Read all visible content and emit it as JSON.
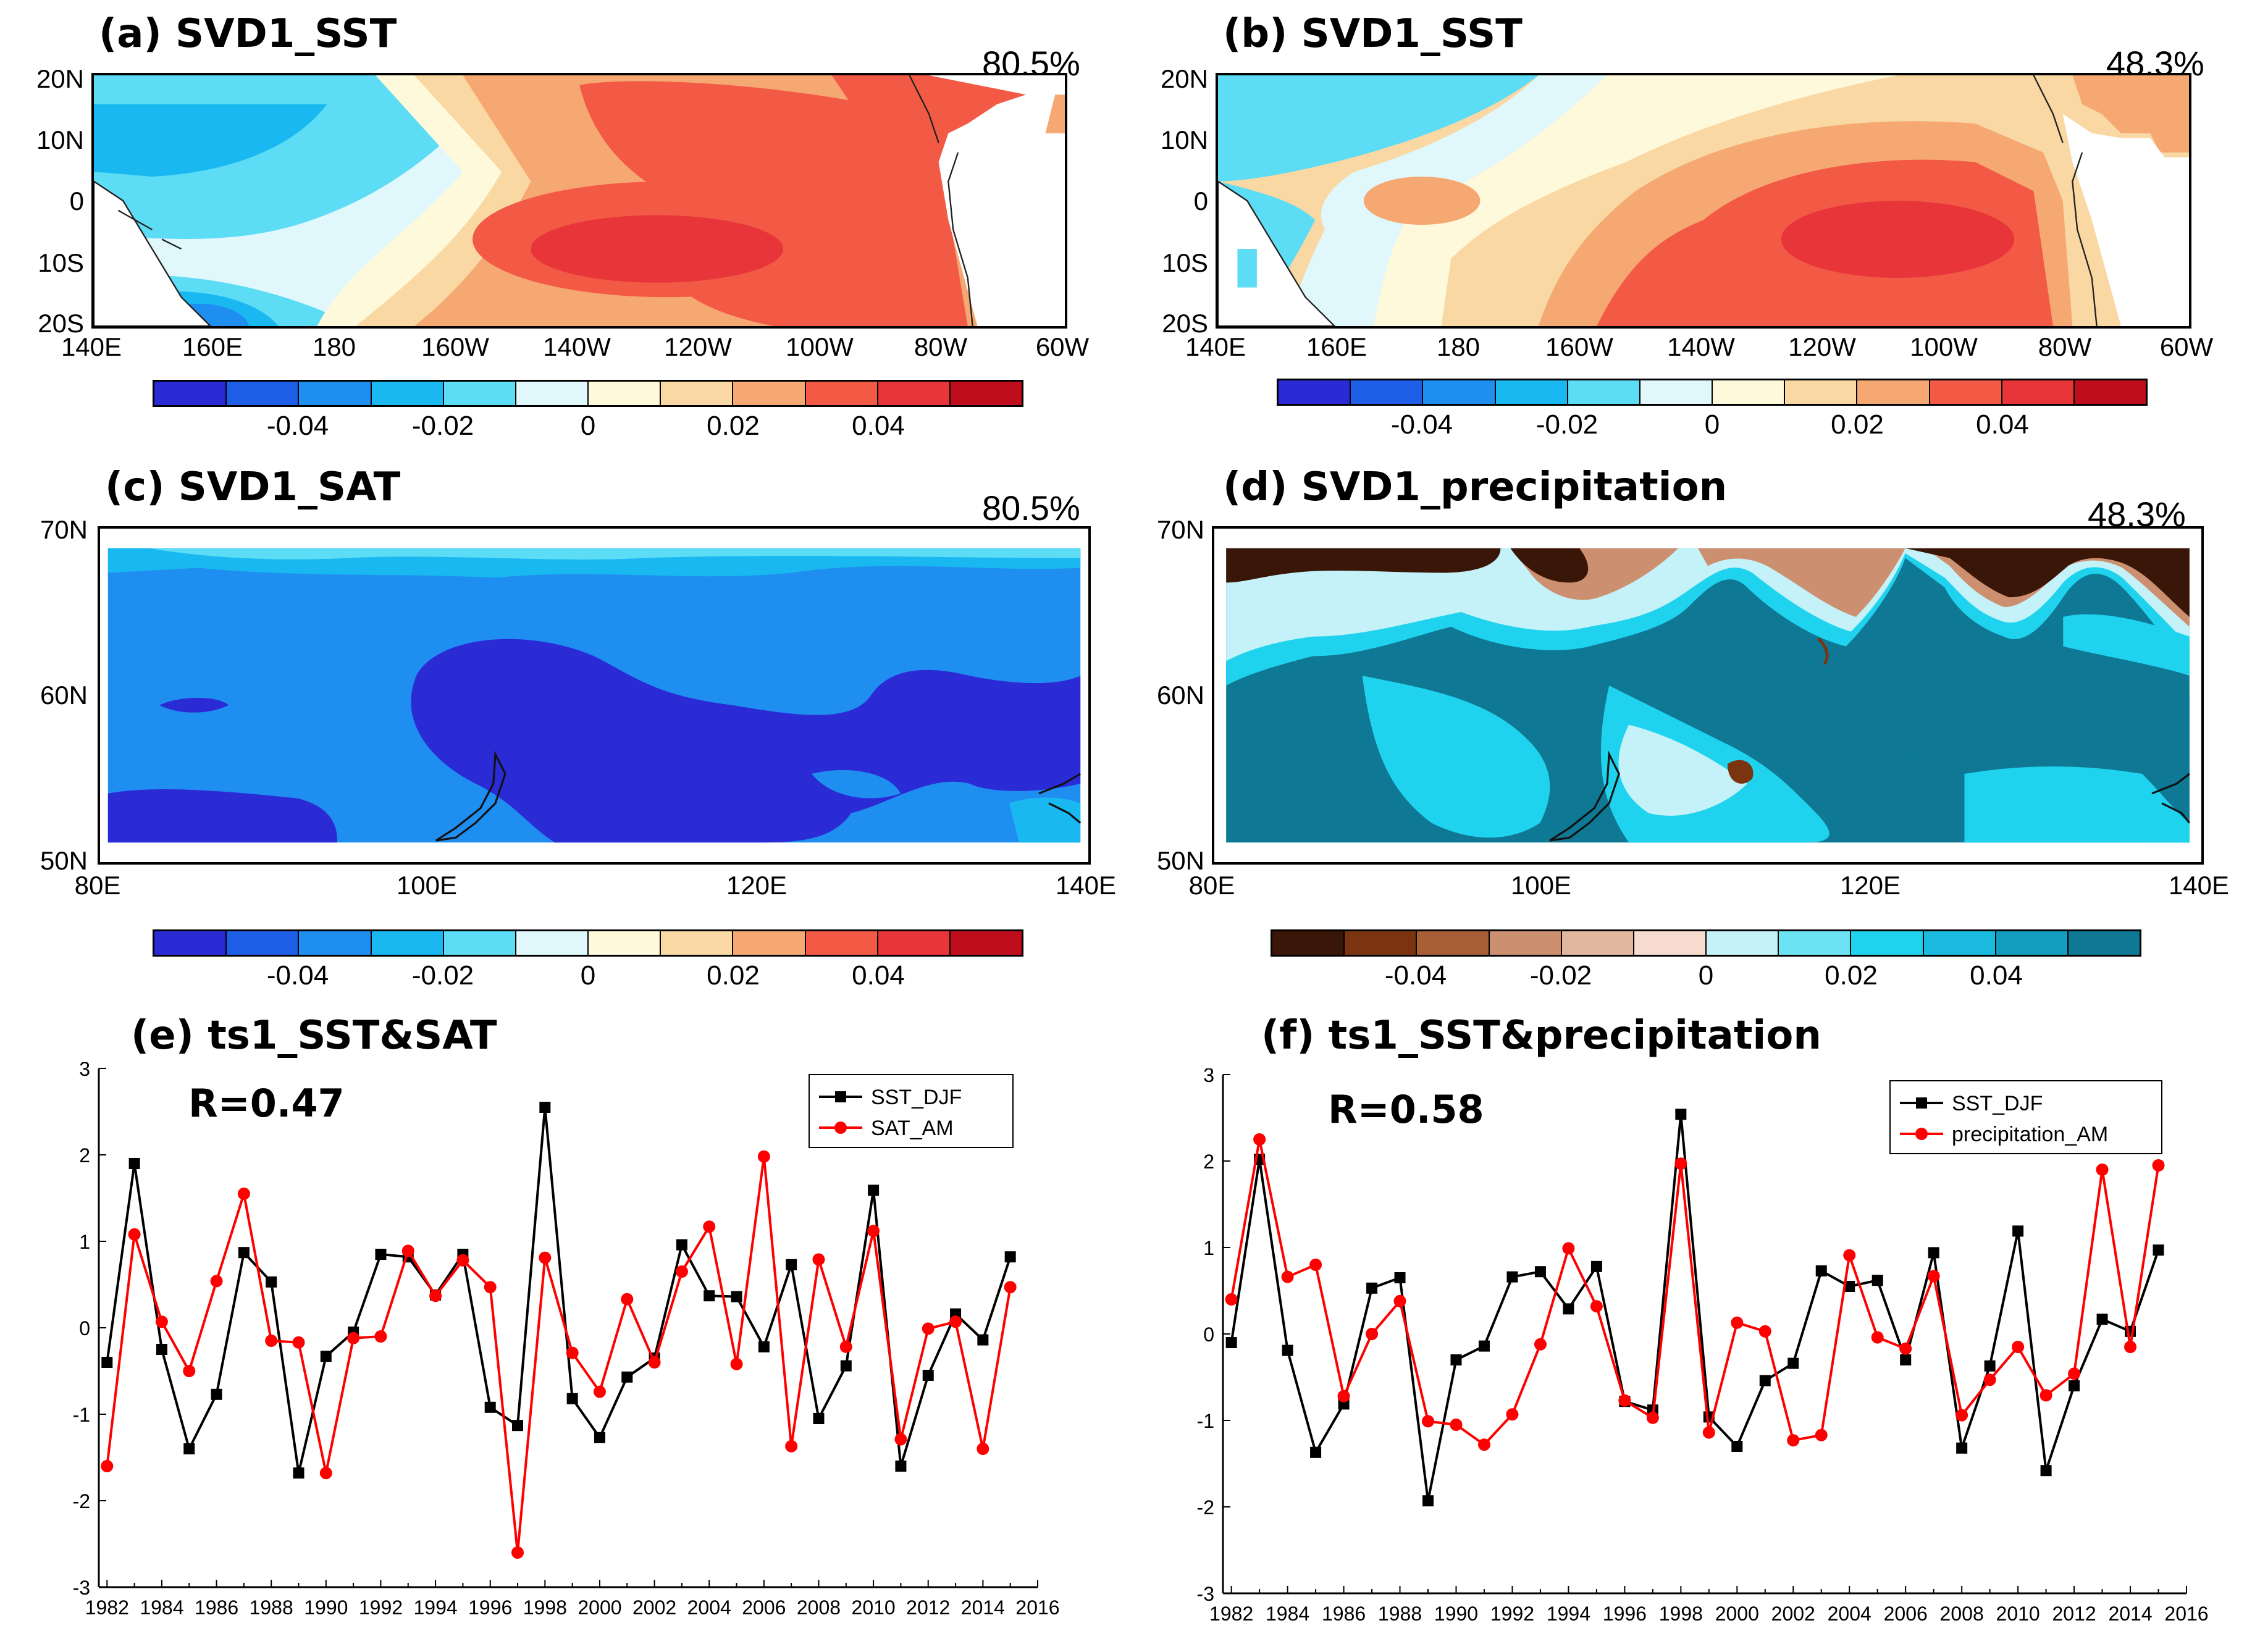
{
  "panels": {
    "a": {
      "title": "(a) SVD1_SST",
      "pct": "80.5%"
    },
    "b": {
      "title": "(b) SVD1_SST",
      "pct": "48.3%"
    },
    "c": {
      "title": "(c) SVD1_SAT",
      "pct": "80.5%"
    },
    "d": {
      "title": "(d) SVD1_precipitation",
      "pct": "48.3%"
    },
    "e": {
      "title": "(e) ts1_SST&SAT",
      "r": "R=0.47"
    },
    "f": {
      "title": "(f) ts1_SST&precipitation",
      "r": "R=0.58"
    }
  },
  "sst_axes": {
    "lat": [
      "20N",
      "10N",
      "0",
      "10S",
      "20S"
    ],
    "lon": [
      "140E",
      "160E",
      "180",
      "160W",
      "140W",
      "120W",
      "100W",
      "80W",
      "60W"
    ]
  },
  "land_axes": {
    "lat": [
      "70N",
      "60N",
      "50N"
    ],
    "lon": [
      "80E",
      "100E",
      "120E",
      "140E"
    ]
  },
  "colorbar_warm": {
    "colors": [
      "#2b2bd6",
      "#1f5fe8",
      "#1e8ef0",
      "#19b8f0",
      "#5cdcf5",
      "#e0f7fb",
      "#fff9dc",
      "#fad8a4",
      "#f6a872",
      "#f25a45",
      "#e8353a",
      "#c00d1e"
    ],
    "labels": [
      "-0.04",
      "-0.02",
      "0",
      "0.02",
      "0.04"
    ]
  },
  "colorbar_brown": {
    "colors": [
      "#3a1608",
      "#7a3410",
      "#a95f35",
      "#cc9070",
      "#e1b79e",
      "#f8dccf",
      "#c4f2f8",
      "#6ce3f3",
      "#1fd3ee",
      "#1bbbe0",
      "#139ec0",
      "#0e7895"
    ],
    "labels": [
      "-0.04",
      "-0.02",
      "0",
      "0.02",
      "0.04"
    ]
  },
  "chart_data": [
    {
      "type": "line",
      "title": "(e) ts1_SST&SAT",
      "annotation": "R=0.47",
      "x": [
        1982,
        1983,
        1984,
        1985,
        1986,
        1987,
        1988,
        1989,
        1990,
        1991,
        1992,
        1993,
        1994,
        1995,
        1996,
        1997,
        1998,
        1999,
        2000,
        2001,
        2002,
        2003,
        2004,
        2005,
        2006,
        2007,
        2008,
        2009,
        2010,
        2011,
        2012,
        2013,
        2014,
        2015
      ],
      "ylim": [
        -3,
        3
      ],
      "yticks": [
        "-3",
        "-2",
        "-1",
        "0",
        "1",
        "2",
        "3"
      ],
      "xticks": [
        "1982",
        "1984",
        "1986",
        "1988",
        "1990",
        "1992",
        "1994",
        "1996",
        "1998",
        "2000",
        "2002",
        "2004",
        "2006",
        "2008",
        "2010",
        "2012",
        "2014",
        "2016"
      ],
      "xlim": [
        1981.7,
        2016
      ],
      "legend_position": "top-right",
      "series": [
        {
          "name": "SST_DJF",
          "color": "#000000",
          "marker": "square",
          "values": [
            -0.4,
            1.9,
            -0.25,
            -1.4,
            -0.77,
            0.87,
            0.53,
            -1.68,
            -0.33,
            -0.05,
            0.85,
            0.82,
            0.38,
            0.85,
            -0.92,
            -1.13,
            2.55,
            -0.82,
            -1.27,
            -0.57,
            -0.35,
            0.96,
            0.37,
            0.36,
            -0.22,
            0.73,
            -1.05,
            -0.44,
            1.59,
            -1.6,
            -0.55,
            0.16,
            -0.14,
            0.82
          ]
        },
        {
          "name": "SAT_AM",
          "color": "#ff0000",
          "marker": "circle",
          "values": [
            -1.6,
            1.08,
            0.07,
            -0.5,
            0.54,
            1.55,
            -0.15,
            -0.17,
            -1.68,
            -0.12,
            -0.1,
            0.89,
            0.37,
            0.78,
            0.47,
            -2.6,
            0.81,
            -0.29,
            -0.74,
            0.33,
            -0.4,
            0.65,
            1.17,
            -0.42,
            1.98,
            -1.37,
            0.79,
            -0.22,
            1.12,
            -1.29,
            -0.01,
            0.07,
            -1.4,
            0.47
          ]
        }
      ]
    },
    {
      "type": "line",
      "title": "(f) ts1_SST&precipitation",
      "annotation": "R=0.58",
      "x": [
        1982,
        1983,
        1984,
        1985,
        1986,
        1987,
        1988,
        1989,
        1990,
        1991,
        1992,
        1993,
        1994,
        1995,
        1996,
        1997,
        1998,
        1999,
        2000,
        2001,
        2002,
        2003,
        2004,
        2005,
        2006,
        2007,
        2008,
        2009,
        2010,
        2011,
        2012,
        2013,
        2014,
        2015
      ],
      "ylim": [
        -3,
        3
      ],
      "yticks": [
        "-3",
        "-2",
        "-1",
        "0",
        "1",
        "2",
        "3"
      ],
      "xticks": [
        "1982",
        "1984",
        "1986",
        "1988",
        "1990",
        "1992",
        "1994",
        "1996",
        "1998",
        "2000",
        "2002",
        "2004",
        "2006",
        "2008",
        "2010",
        "2012",
        "2014",
        "2016"
      ],
      "xlim": [
        1981.7,
        2016
      ],
      "legend_position": "top-right",
      "series": [
        {
          "name": "SST_DJF",
          "color": "#000000",
          "marker": "square",
          "values": [
            -0.1,
            2.02,
            -0.19,
            -1.37,
            -0.81,
            0.53,
            0.65,
            -1.93,
            -0.3,
            -0.14,
            0.66,
            0.72,
            0.29,
            0.78,
            -0.78,
            -0.88,
            2.54,
            -0.96,
            -1.3,
            -0.54,
            -0.34,
            0.73,
            0.55,
            0.62,
            -0.3,
            0.94,
            -1.32,
            -0.37,
            1.19,
            -1.58,
            -0.6,
            0.17,
            0.03,
            0.97
          ]
        },
        {
          "name": "precipitation_AM",
          "color": "#ff0000",
          "marker": "circle",
          "values": [
            0.4,
            2.25,
            0.66,
            0.8,
            -0.72,
            0.0,
            0.38,
            -1.01,
            -1.05,
            -1.28,
            -0.93,
            -0.12,
            0.99,
            0.32,
            -0.77,
            -0.97,
            1.97,
            -1.14,
            0.13,
            0.03,
            -1.23,
            -1.17,
            0.91,
            -0.04,
            -0.17,
            0.67,
            -0.94,
            -0.53,
            -0.15,
            -0.71,
            -0.46,
            1.9,
            -0.15,
            1.95
          ]
        }
      ]
    }
  ]
}
